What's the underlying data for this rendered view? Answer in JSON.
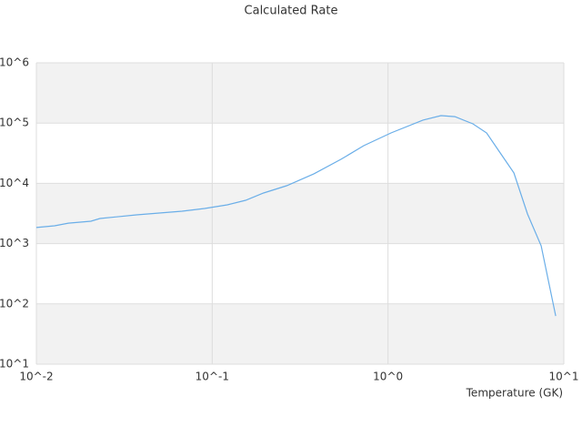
{
  "chart_data": {
    "type": "line",
    "title": "Calculated Rate",
    "x_label": "Temperature (GK)",
    "x": [
      0.01,
      0.0127,
      0.0152,
      0.0204,
      0.023,
      0.0371,
      0.0673,
      0.0906,
      0.122,
      0.155,
      0.196,
      0.265,
      0.379,
      0.541,
      0.728,
      1.04,
      1.58,
      2.0,
      2.4,
      3.04,
      3.64,
      4.35,
      5.2,
      6.22,
      7.43,
      8.99
    ],
    "series": [
      {
        "color": "#6aaee8",
        "values": [
          1850,
          1980,
          2190,
          2350,
          2610,
          3000,
          3450,
          3830,
          4400,
          5230,
          6920,
          9140,
          14400,
          25100,
          42200,
          68700,
          112000,
          133000,
          128000,
          97300,
          68700,
          31900,
          14900,
          3100,
          920,
          63
        ]
      }
    ],
    "xlim": [
      0.01,
      10
    ],
    "ylim": [
      10,
      1000000
    ],
    "x_scale": "log",
    "y_scale": "log",
    "xticks": [
      {
        "value": 0.01,
        "label": "10^-2"
      },
      {
        "value": 0.1,
        "label": "10^-1"
      },
      {
        "value": 1,
        "label": "10^0"
      },
      {
        "value": 10,
        "label": "10^1"
      }
    ],
    "yticks": [
      {
        "value": 10,
        "label": "10^1"
      },
      {
        "value": 100,
        "label": "10^2"
      },
      {
        "value": 1000,
        "label": "10^3"
      },
      {
        "value": 10000,
        "label": "10^4"
      },
      {
        "value": 100000,
        "label": "10^5"
      },
      {
        "value": 1000000,
        "label": "10^6"
      }
    ],
    "grid": true
  }
}
